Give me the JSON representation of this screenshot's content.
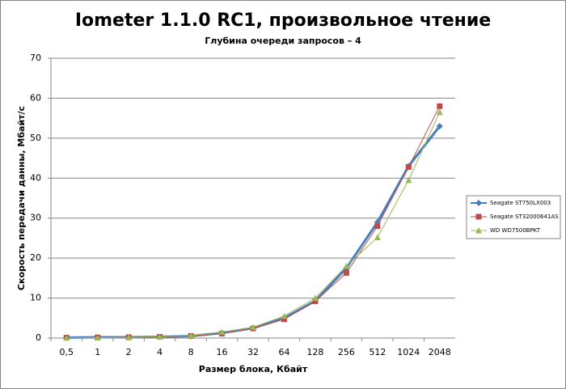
{
  "chart_data": {
    "type": "line",
    "title": "Iometer 1.1.0 RC1, произвольное чтение",
    "subtitle": "Глубина очереди запросов – 4",
    "x_label": "Размер блока, Кбайт",
    "y_label": "Скорость передачи данны, Мбайт/с",
    "categories": [
      "0,5",
      "1",
      "2",
      "4",
      "8",
      "16",
      "32",
      "64",
      "128",
      "256",
      "512",
      "1024",
      "2048"
    ],
    "series": [
      {
        "name": "Seagate ST750LX003",
        "color": "#4a7ebb",
        "values": [
          0.1,
          0.2,
          0.2,
          0.3,
          0.5,
          1.3,
          2.5,
          5,
          9.3,
          17.5,
          29,
          43,
          53
        ]
      },
      {
        "name": "Seagate ST32000641AS",
        "color": "#be4b48",
        "values": [
          0.1,
          0.15,
          0.2,
          0.3,
          0.5,
          1.1,
          2.4,
          4.7,
          9.2,
          16.3,
          28,
          42.8,
          58
        ]
      },
      {
        "name": "WD WD7500BPKT",
        "color": "#98b954",
        "values": [
          0.05,
          0.1,
          0.15,
          0.3,
          0.6,
          1.5,
          2.7,
          5.5,
          10,
          18,
          25.2,
          39.5,
          56.5
        ]
      }
    ],
    "ylim": [
      0,
      70
    ],
    "yticks": [
      0,
      10,
      20,
      30,
      40,
      50,
      60,
      70
    ],
    "grid": true,
    "legend": "right"
  }
}
